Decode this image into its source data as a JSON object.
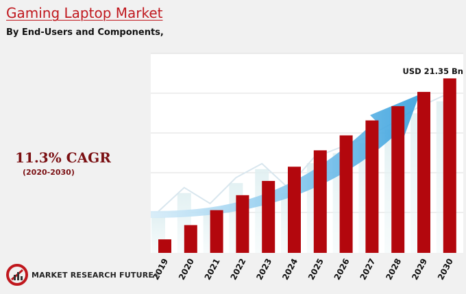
{
  "header": {
    "title": "Gaming Laptop Market",
    "subtitle": "By End-Users and Components,"
  },
  "callout": {
    "cagr": "11.3% CAGR",
    "period": "(2020-2030)"
  },
  "brand": {
    "name": "MARKET RESEARCH FUTURE",
    "mark": "®"
  },
  "chart_data": {
    "type": "bar",
    "categories": [
      "2019",
      "2020",
      "2021",
      "2022",
      "2023",
      "2024",
      "2025",
      "2026",
      "2027",
      "2028",
      "2029",
      "2030"
    ],
    "series": [
      {
        "values": [
          1.9,
          3.9,
          6.0,
          8.1,
          10.1,
          12.1,
          14.4,
          16.5,
          18.6,
          20.6,
          22.6,
          24.5
        ]
      }
    ],
    "annotation": "USD 21.35 Bn",
    "ylim": [
      0,
      28
    ],
    "grid": true,
    "colors": {
      "bar": "#b3070d",
      "arrow": "#4aa9e0",
      "plot_bg": "#ffffff"
    }
  }
}
